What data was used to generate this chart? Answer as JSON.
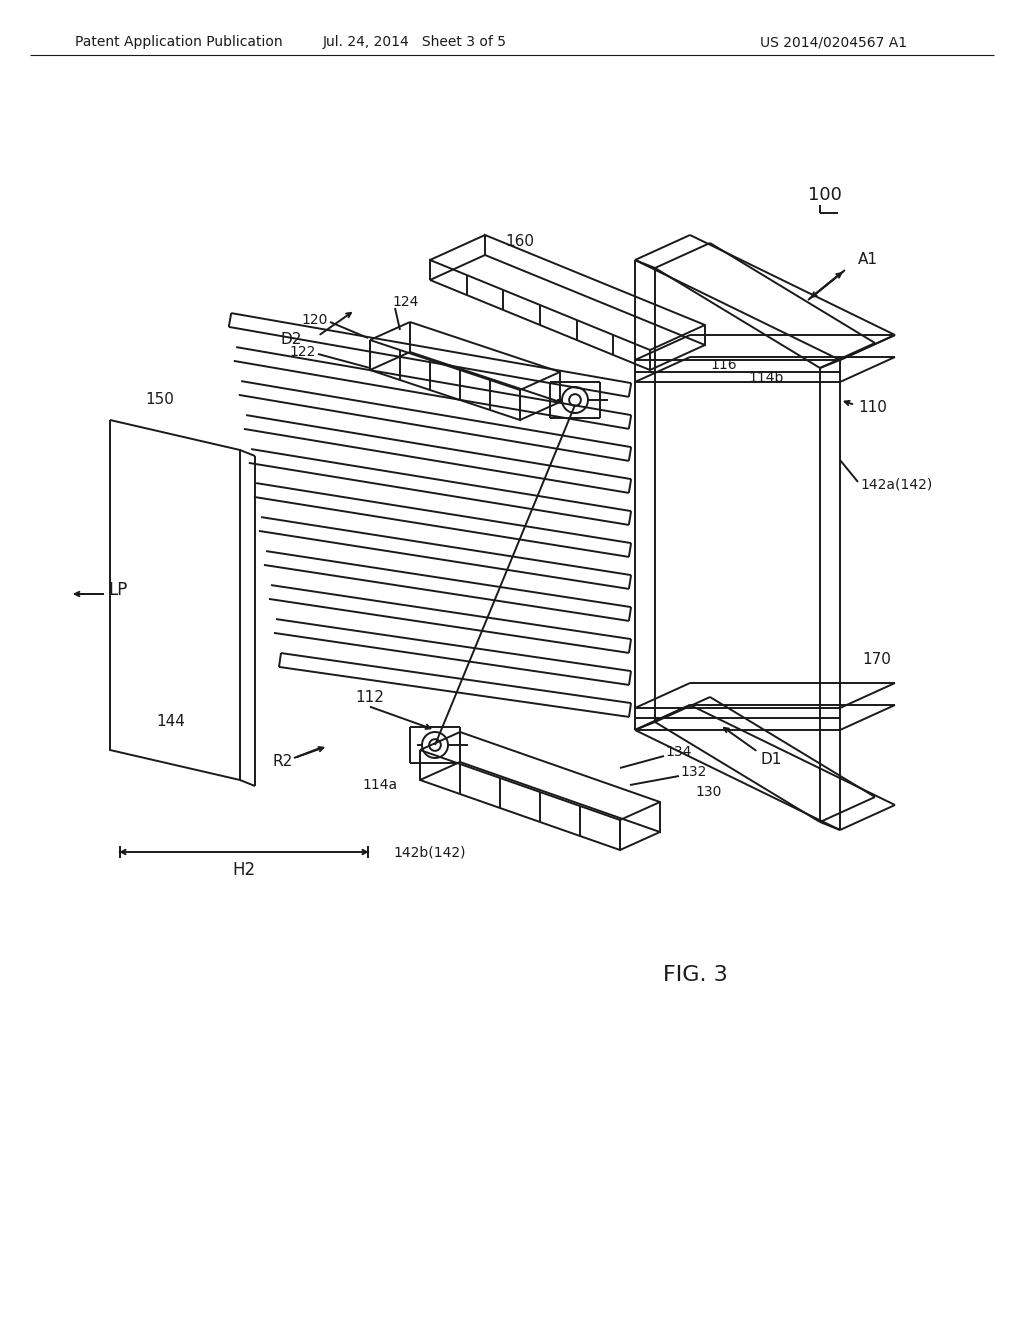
{
  "bg_color": "#ffffff",
  "line_color": "#1a1a1a",
  "header_left": "Patent Application Publication",
  "header_mid": "Jul. 24, 2014   Sheet 3 of 5",
  "header_right": "US 2014/0204567 A1",
  "fig_label": "FIG. 3",
  "lw": 1.4
}
